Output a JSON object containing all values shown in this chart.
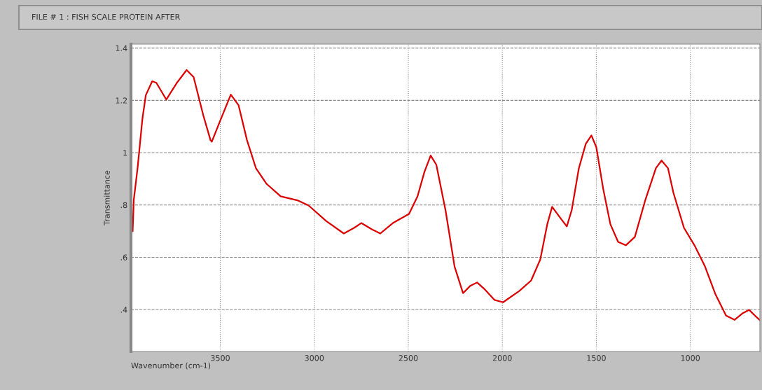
{
  "chart_data": {
    "type": "line",
    "title": "FILE # 1 : FISH SCALE PROTEIN AFTER",
    "xlabel": "Wavenumber (cm-1)",
    "ylabel": "Transmittance",
    "x": [
      3966,
      3960,
      3940,
      3914,
      3896,
      3862,
      3840,
      3787,
      3731,
      3679,
      3642,
      3590,
      3552,
      3545,
      3500,
      3444,
      3403,
      3358,
      3310,
      3254,
      3179,
      3086,
      3030,
      2937,
      2843,
      2787,
      2750,
      2694,
      2649,
      2582,
      2496,
      2451,
      2414,
      2381,
      2351,
      2302,
      2254,
      2209,
      2172,
      2134,
      2097,
      2041,
      1996,
      1910,
      1847,
      1798,
      1761,
      1735,
      1694,
      1657,
      1631,
      1593,
      1556,
      1526,
      1500,
      1463,
      1425,
      1384,
      1343,
      1295,
      1239,
      1183,
      1153,
      1119,
      1090,
      1034,
      978,
      922,
      866,
      810,
      765,
      724,
      687,
      649,
      630
    ],
    "series": [
      {
        "color": "#dd0000",
        "values": [
          0.7,
          0.82,
          0.94,
          1.13,
          1.22,
          1.273,
          1.267,
          1.203,
          1.267,
          1.316,
          1.289,
          1.142,
          1.048,
          1.042,
          1.123,
          1.222,
          1.182,
          1.048,
          0.94,
          0.881,
          0.833,
          0.817,
          0.798,
          0.739,
          0.691,
          0.713,
          0.731,
          0.707,
          0.691,
          0.731,
          0.766,
          0.833,
          0.927,
          0.989,
          0.954,
          0.78,
          0.565,
          0.463,
          0.49,
          0.504,
          0.48,
          0.437,
          0.428,
          0.471,
          0.511,
          0.592,
          0.726,
          0.793,
          0.753,
          0.718,
          0.78,
          0.94,
          1.034,
          1.066,
          1.021,
          0.86,
          0.726,
          0.659,
          0.646,
          0.678,
          0.82,
          0.941,
          0.97,
          0.941,
          0.847,
          0.713,
          0.646,
          0.565,
          0.458,
          0.377,
          0.361,
          0.385,
          0.399,
          0.372,
          0.36
        ]
      }
    ],
    "xlim": [
      3975,
      630
    ],
    "ylim": [
      0.24,
      1.415
    ],
    "xticks": [
      3500,
      3000,
      2500,
      2000,
      1500,
      1000
    ],
    "yticks": [
      {
        "value": 0.4,
        "label": ".4"
      },
      {
        "value": 0.6,
        "label": ".6"
      },
      {
        "value": 0.8,
        "label": ".8"
      },
      1,
      {
        "value": 1.2,
        "label": "1.2"
      },
      {
        "value": 1.4,
        "label": "1.4"
      }
    ],
    "grid": true,
    "marker": "none",
    "line_style": "solid"
  }
}
